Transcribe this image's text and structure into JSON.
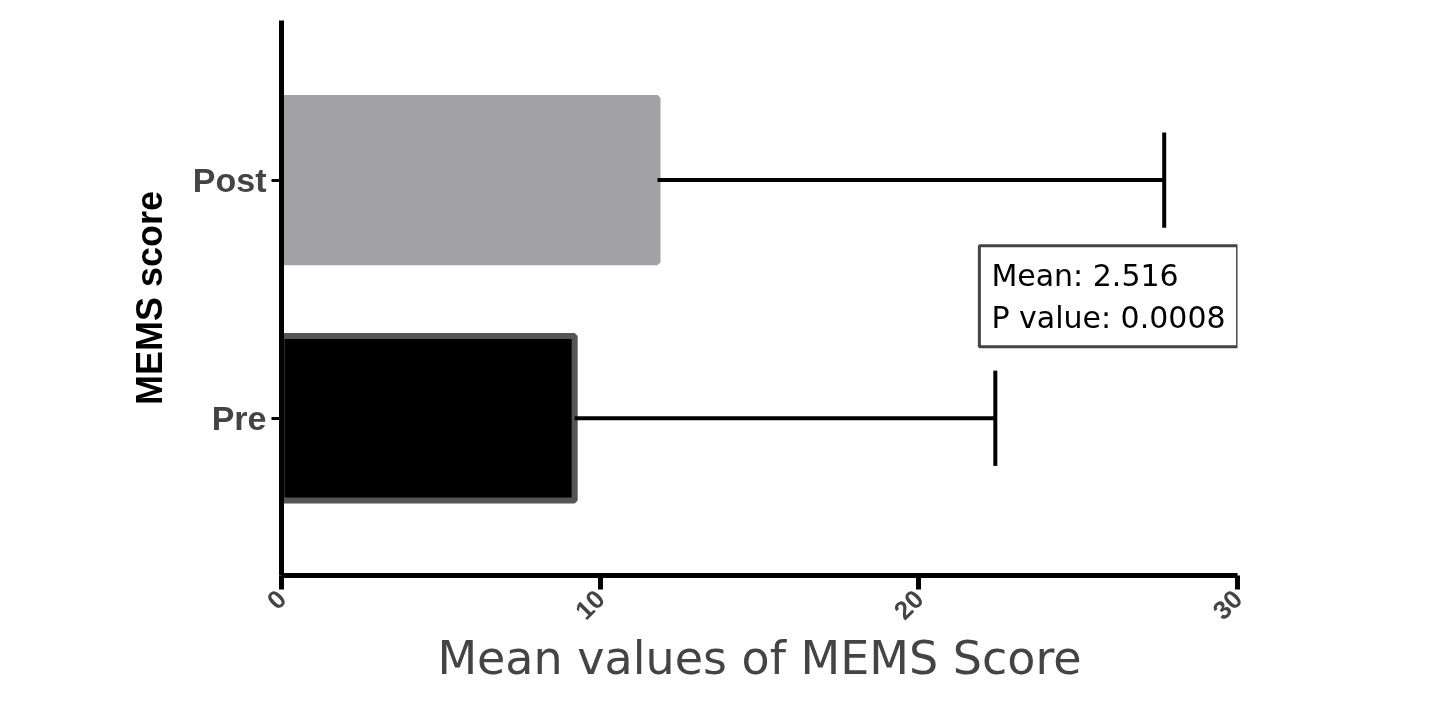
{
  "chart_data": {
    "type": "bar",
    "orientation": "horizontal",
    "categories": [
      "Post",
      "Pre"
    ],
    "values": [
      11.8,
      9.2
    ],
    "colors": [
      "#a2a1a6",
      "#000000"
    ],
    "errors": [
      [
        11.8,
        27.7
      ],
      [
        9.2,
        22.4
      ]
    ],
    "xlim": [
      0,
      30
    ],
    "xticks": [
      0,
      10,
      20,
      30
    ],
    "xlabel": "Mean values of MEMS Score",
    "ylabel": "MEMS score",
    "annotations": [
      "Mean: 2.516\nP value: 0.0008"
    ],
    "grid": false
  }
}
